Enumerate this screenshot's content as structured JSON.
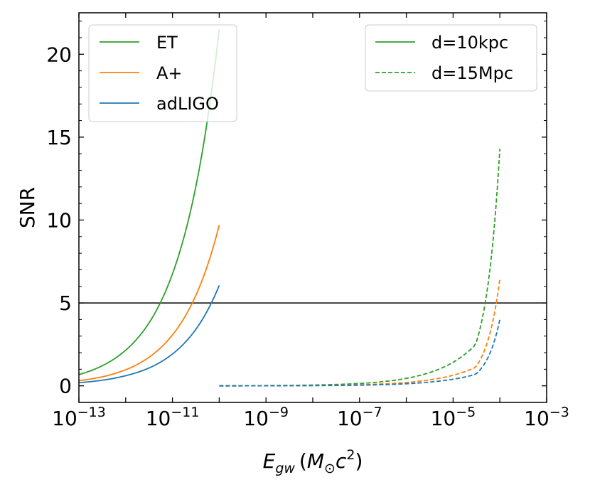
{
  "chart_data": {
    "type": "line",
    "xlabel": {
      "main": "E",
      "sub": "gw",
      "open": "(",
      "unit_m": "M",
      "unit_sub": "⊙",
      "unit_c": "c",
      "unit_sup": "2",
      "close": ")"
    },
    "ylabel": "SNR",
    "xscale": "log",
    "xlim_exponent": [
      -13,
      -3
    ],
    "ylim": [
      -1,
      22.5
    ],
    "x_tick_labels": [
      {
        "base": "10",
        "exp": "−13",
        "power": -13
      },
      {
        "base": "10",
        "exp": "−11",
        "power": -11
      },
      {
        "base": "10",
        "exp": "−9",
        "power": -9
      },
      {
        "base": "10",
        "exp": "−7",
        "power": -7
      },
      {
        "base": "10",
        "exp": "−5",
        "power": -5
      },
      {
        "base": "10",
        "exp": "−3",
        "power": -3
      }
    ],
    "y_tick_labels": [
      "0",
      "5",
      "10",
      "15",
      "20"
    ],
    "y_ticks": [
      0,
      5,
      10,
      15,
      20
    ],
    "hline": {
      "y": 5,
      "color": "#000000"
    },
    "legend_detectors": {
      "placement": "top-left",
      "entries": [
        {
          "label": "ET",
          "color": "#2ca02c"
        },
        {
          "label": "A+",
          "color": "#ff7f0e"
        },
        {
          "label": "adLIGO",
          "color": "#1f77b4"
        }
      ]
    },
    "legend_distances": {
      "placement": "top-right",
      "entries": [
        {
          "label": "d=10kpc",
          "color": "#2ca02c",
          "dash": "solid"
        },
        {
          "label": "d=15Mpc",
          "color": "#2ca02c",
          "dash": "dashed"
        }
      ]
    },
    "series": [
      {
        "name": "ET",
        "distance": "d=10kpc",
        "color": "#2ca02c",
        "dash": "solid",
        "x": [
          1e-13,
          3e-13,
          1e-12,
          3e-12,
          1e-11,
          3e-11,
          1e-10
        ],
        "y": [
          0.68,
          1.18,
          2.15,
          3.7,
          6.75,
          11.7,
          21.5
        ]
      },
      {
        "name": "A+",
        "distance": "d=10kpc",
        "color": "#ff7f0e",
        "dash": "solid",
        "x": [
          1e-13,
          3e-13,
          1e-12,
          3e-12,
          1e-11,
          3e-11,
          1e-10
        ],
        "y": [
          0.31,
          0.53,
          0.97,
          1.68,
          3.07,
          5.31,
          9.7
        ]
      },
      {
        "name": "adLIGO",
        "distance": "d=10kpc",
        "color": "#1f77b4",
        "dash": "solid",
        "x": [
          1e-13,
          3e-13,
          1e-12,
          3e-12,
          1e-11,
          3e-11,
          1e-10
        ],
        "y": [
          0.19,
          0.33,
          0.61,
          1.05,
          1.92,
          3.32,
          6.06
        ]
      },
      {
        "name": "ET",
        "distance": "d=15Mpc",
        "color": "#2ca02c",
        "dash": "dashed",
        "x": [
          1e-10,
          1e-09,
          1e-08,
          1e-07,
          1e-06,
          3e-06,
          1e-05,
          3e-05,
          0.0001
        ],
        "y": [
          0.0,
          0.015,
          0.048,
          0.142,
          0.45,
          0.78,
          1.42,
          2.47,
          14.3
        ]
      },
      {
        "name": "A+",
        "distance": "d=15Mpc",
        "color": "#ff7f0e",
        "dash": "dashed",
        "x": [
          1e-10,
          1e-09,
          1e-08,
          1e-07,
          1e-06,
          3e-06,
          1e-05,
          3e-05,
          0.0001
        ],
        "y": [
          0.0,
          0.007,
          0.022,
          0.064,
          0.2,
          0.35,
          0.64,
          1.11,
          6.45
        ]
      },
      {
        "name": "adLIGO",
        "distance": "d=15Mpc",
        "color": "#1f77b4",
        "dash": "dashed",
        "x": [
          1e-10,
          1e-09,
          1e-08,
          1e-07,
          1e-06,
          3e-06,
          1e-05,
          3e-05,
          0.0001
        ],
        "y": [
          0.0,
          0.004,
          0.013,
          0.04,
          0.126,
          0.22,
          0.4,
          0.69,
          4.0
        ]
      }
    ]
  }
}
